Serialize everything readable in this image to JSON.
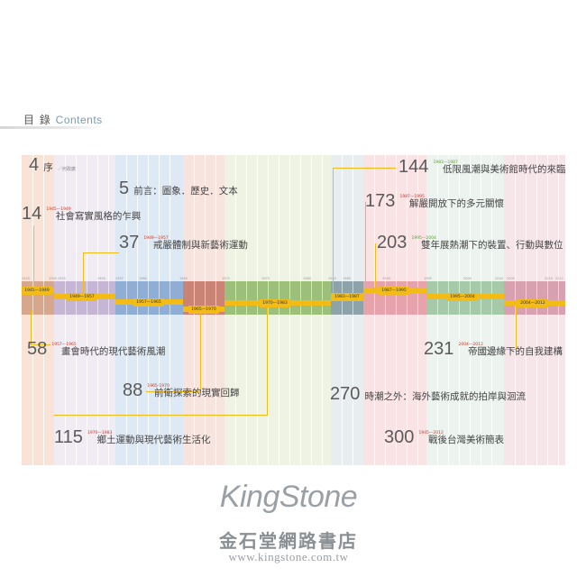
{
  "header": {
    "title_zh": "目 錄",
    "title_en": "Contents"
  },
  "axis_ticks": [
    "1945",
    "1949",
    "1950",
    "1955",
    "1957",
    "1960",
    "1965",
    "1970",
    "1975",
    "1980",
    "1983",
    "1985",
    "1990",
    "1995",
    "2000",
    "2004",
    "2005",
    "2010",
    "2012"
  ],
  "band_labels": [
    "1945—1949",
    "1949—1957",
    "1957—1965",
    "1965—1970",
    "1970—1983",
    "1983—1987",
    "1987—1995",
    "1995—2004",
    "2004—2012"
  ],
  "entries": [
    {
      "page": "4",
      "range": "",
      "title": "序",
      "sub": "／何政廣"
    },
    {
      "page": "5",
      "range": "",
      "title": "前言：圖象．歷史．文本",
      "sub": ""
    },
    {
      "page": "14",
      "range": "1945—1949",
      "title": "社會寫實風格的乍興",
      "sub": ""
    },
    {
      "page": "37",
      "range": "1949—1957",
      "title": "戒嚴體制與新藝術運動",
      "sub": ""
    },
    {
      "page": "58",
      "range": "1957—1965",
      "title": "畫會時代的現代藝術風潮",
      "sub": ""
    },
    {
      "page": "88",
      "range": "1965-1970",
      "title": "前衛探索的現實回歸",
      "sub": ""
    },
    {
      "page": "115",
      "range": "1970—1983",
      "title": "鄉土運動與現代藝術生活化",
      "sub": ""
    },
    {
      "page": "144",
      "range": "1983—1987",
      "title": "低限風潮與美術館時代的來臨",
      "sub": ""
    },
    {
      "page": "173",
      "range": "1987—1995",
      "title": "解嚴開放下的多元關懷",
      "sub": ""
    },
    {
      "page": "203",
      "range": "1995—2004",
      "title": "雙年展熱潮下的裝置、行動與數位",
      "sub": ""
    },
    {
      "page": "231",
      "range": "2004—2012",
      "title": "帝國邊緣下的自我建構",
      "sub": ""
    },
    {
      "page": "270",
      "range": "",
      "title": "時潮之外：海外藝術成就的拍岸與洄流",
      "sub": ""
    },
    {
      "page": "300",
      "range": "1945—2012",
      "title": "戰後台灣美術簡表",
      "sub": ""
    }
  ],
  "watermark": {
    "logo": "KingStone",
    "zh": "金石堂網路書店",
    "url": "www.kingstone.com.tw"
  },
  "colors": {
    "highlight": "#f2bb16",
    "range_red": "#c0392b",
    "range_green": "#5a9c3a"
  }
}
